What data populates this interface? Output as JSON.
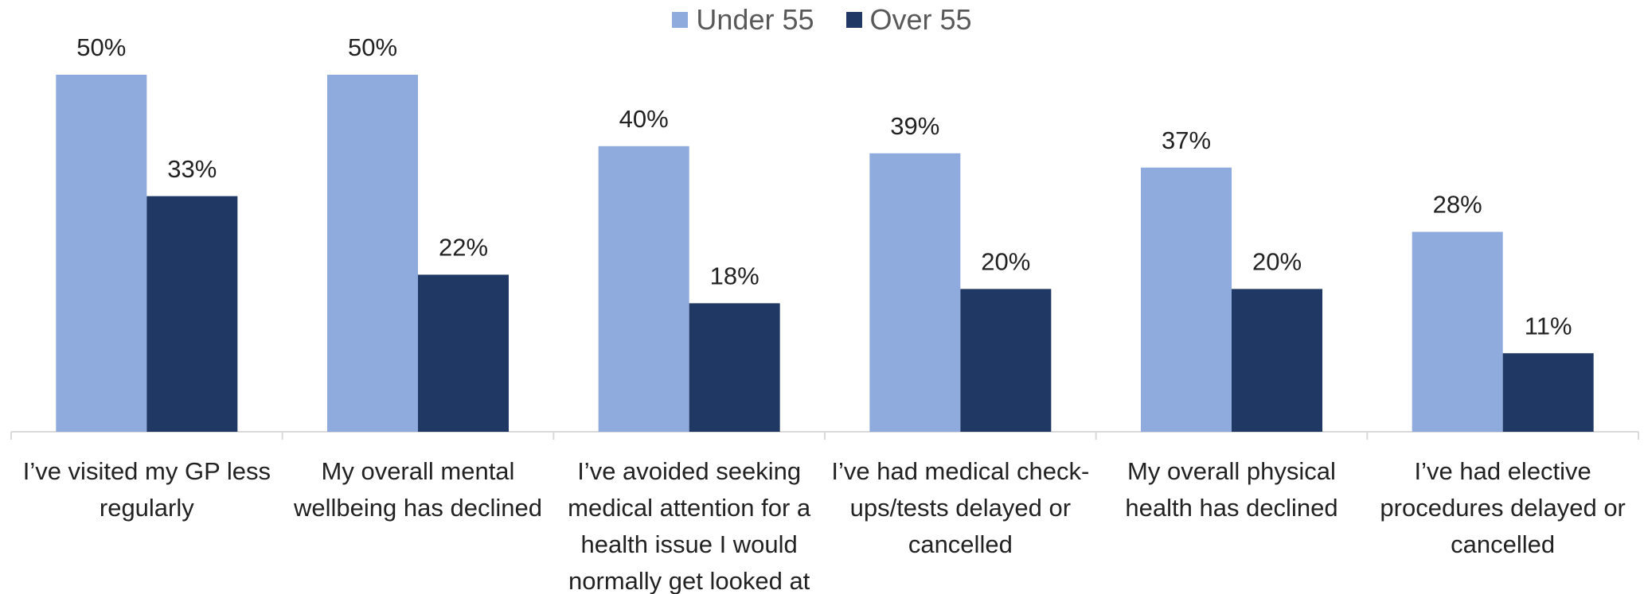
{
  "chart_data": {
    "type": "bar",
    "categories": [
      "I’ve visited my GP less regularly",
      "My overall mental wellbeing has declined",
      "I’ve avoided seeking medical attention for a health issue I would normally get looked at",
      "I’ve had medical check-ups/tests delayed or cancelled",
      "My overall physical health has declined",
      "I’ve had elective procedures delayed or cancelled"
    ],
    "series": [
      {
        "name": "Under 55",
        "color": "#8faadc",
        "values": [
          50,
          50,
          40,
          39,
          37,
          28
        ],
        "value_labels": [
          "50%",
          "50%",
          "40%",
          "39%",
          "37%",
          "28%"
        ]
      },
      {
        "name": "Over 55",
        "color": "#203864",
        "values": [
          33,
          22,
          18,
          20,
          20,
          11
        ],
        "value_labels": [
          "33%",
          "22%",
          "18%",
          "20%",
          "20%",
          "11%"
        ]
      }
    ],
    "legend": "top"
  }
}
